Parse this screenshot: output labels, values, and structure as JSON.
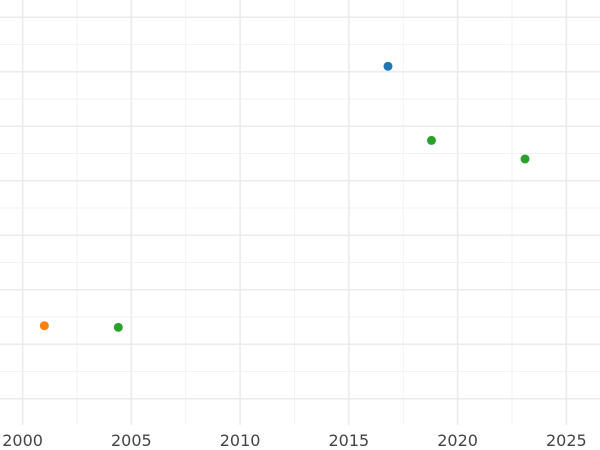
{
  "chart_data": {
    "type": "scatter",
    "title": "",
    "xlabel": "",
    "ylabel": "",
    "xlim": [
      2000,
      2026
    ],
    "ylim": [
      0,
      8
    ],
    "x_ticks": [
      2000,
      2005,
      2010,
      2015,
      2020,
      2025
    ],
    "y_ticks": [
      0.5,
      1.5,
      2.5,
      3.5,
      4.5,
      5.5,
      6.5,
      7.5
    ],
    "grid": true,
    "legend": "none",
    "points": [
      {
        "x": 2016.8,
        "y": 6.6,
        "color": "#1f77b4"
      },
      {
        "x": 2018.8,
        "y": 5.24,
        "color": "#2ca02c"
      },
      {
        "x": 2023.1,
        "y": 4.9,
        "color": "#2ca02c"
      },
      {
        "x": 2001.0,
        "y": 1.84,
        "color": "#ff7f0e"
      },
      {
        "x": 2004.4,
        "y": 1.81,
        "color": "#2ca02c"
      }
    ]
  }
}
